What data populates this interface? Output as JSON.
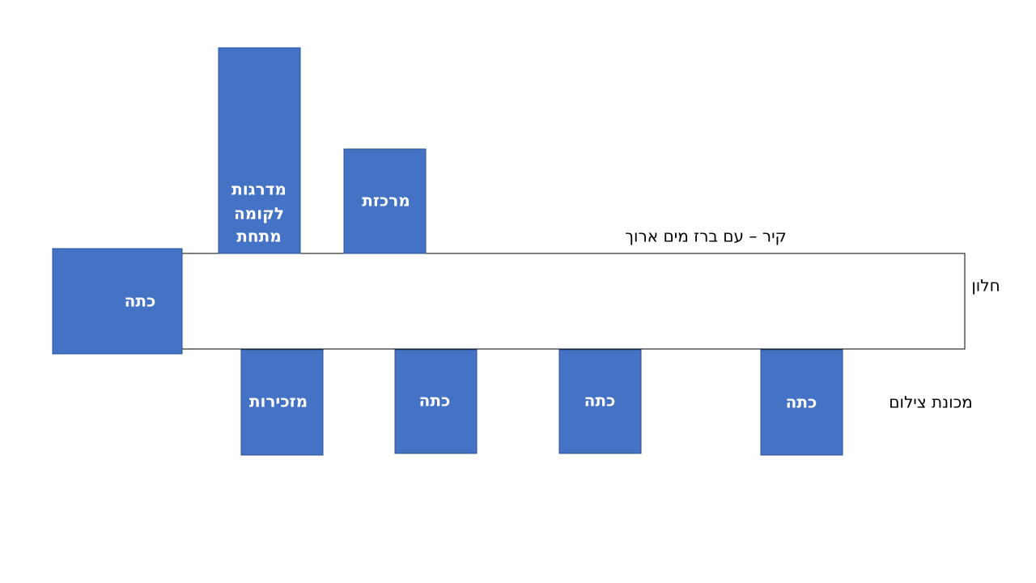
{
  "nodes": [
    {
      "label": "כתה"
    },
    {
      "lines": [
        "מדרגות",
        "לקומה",
        "מתחת"
      ]
    },
    {
      "label": "מרכזת"
    },
    {
      "label": "מזכירות"
    },
    {
      "label": "כתה"
    },
    {
      "label": "כתה"
    },
    {
      "label": "כתה"
    }
  ],
  "annotations": {
    "wall": "קיר – עם ברז מים ארוך",
    "window": "חלון",
    "copier": "מכונת צילום"
  }
}
